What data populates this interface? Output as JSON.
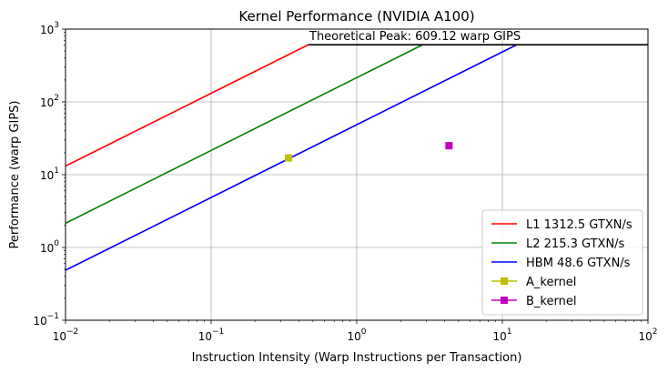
{
  "chart_data": {
    "type": "line",
    "title": "Kernel Performance (NVIDIA A100)",
    "xlabel": "Instruction Intensity (Warp Instructions per Transaction)",
    "ylabel": "Performance (warp GIPS)",
    "xscale": "log",
    "yscale": "log",
    "xlim": [
      0.01,
      100
    ],
    "ylim": [
      0.1,
      1000
    ],
    "grid": true,
    "legend_position": "lower-right",
    "x_ticks": [
      {
        "value": 0.01,
        "base": "10",
        "exp": "−2"
      },
      {
        "value": 0.1,
        "base": "10",
        "exp": "−1"
      },
      {
        "value": 1,
        "base": "10",
        "exp": "0"
      },
      {
        "value": 10,
        "base": "10",
        "exp": "1"
      },
      {
        "value": 100,
        "base": "10",
        "exp": "2"
      }
    ],
    "y_ticks": [
      {
        "value": 0.1,
        "base": "10",
        "exp": "−1"
      },
      {
        "value": 1,
        "base": "10",
        "exp": "0"
      },
      {
        "value": 10,
        "base": "10",
        "exp": "1"
      },
      {
        "value": 100,
        "base": "10",
        "exp": "2"
      },
      {
        "value": 1000,
        "base": "10",
        "exp": "3"
      }
    ],
    "peak": {
      "value": 609.12,
      "label": "Theoretical Peak: 609.12 warp GIPS",
      "color": "#000000"
    },
    "rooflines": [
      {
        "name": "L1 1312.5 GTXN/s",
        "bandwidth": 1312.5,
        "color": "#ff0000"
      },
      {
        "name": "L2 215.3 GTXN/s",
        "bandwidth": 215.3,
        "color": "#008000"
      },
      {
        "name": "HBM 48.6 GTXN/s",
        "bandwidth": 48.6,
        "color": "#0000ff"
      }
    ],
    "points": [
      {
        "name": "A_kernel",
        "x": 0.34,
        "y": 17,
        "color": "#bfbf00"
      },
      {
        "name": "B_kernel",
        "x": 4.3,
        "y": 25,
        "color": "#bf00bf"
      }
    ]
  }
}
